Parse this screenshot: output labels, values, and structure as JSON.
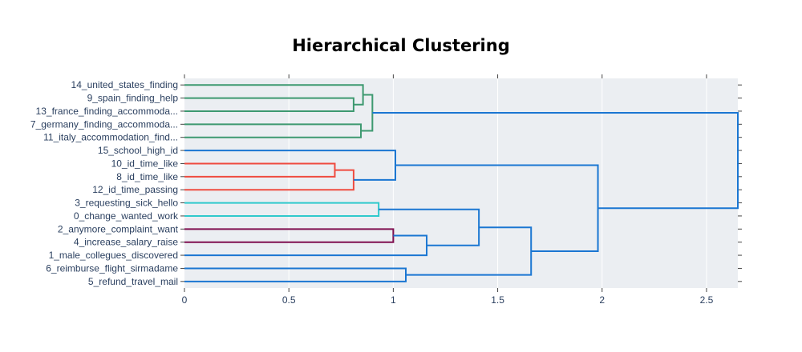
{
  "chart_data": {
    "type": "dendrogram",
    "title": "Hierarchical Clustering",
    "orientation": "horizontal",
    "xlim": [
      0,
      2.65
    ],
    "x_ticks": [
      "0",
      "0.5",
      "1",
      "1.5",
      "2",
      "2.5"
    ],
    "x_tick_values": [
      0,
      0.5,
      1,
      1.5,
      2,
      2.5
    ],
    "grid": true,
    "plot_background": "#ebeef2",
    "leaves": [
      "14_united_states_finding",
      "9_spain_finding_help",
      "13_france_finding_accommoda...",
      "7_germany_finding_accommoda...",
      "11_italy_accommodation_find...",
      "15_school_high_id",
      "10_id_time_like",
      "8_id_time_like",
      "12_id_time_passing",
      "3_requesting_sick_hello",
      "0_change_wanted_work",
      "2_anymore_complaint_want",
      "4_increase_salary_raise",
      "1_male_collegues_discovered",
      "6_reimburse_flight_sirmadame",
      "5_refund_travel_mail"
    ],
    "merges": [
      {
        "a": 1,
        "b": 2,
        "distance": 0.81,
        "color": "#3d9970"
      },
      {
        "a": 0,
        "b": "m0",
        "distance": 0.855,
        "color": "#3d9970"
      },
      {
        "a": 3,
        "b": 4,
        "distance": 0.845,
        "color": "#3d9970"
      },
      {
        "a": "m1",
        "b": "m2",
        "distance": 0.9,
        "color": "#3d9970"
      },
      {
        "a": 6,
        "b": 7,
        "distance": 0.72,
        "color": "#ef4b3f"
      },
      {
        "a": "m4",
        "b": 8,
        "distance": 0.81,
        "color": "#ef4b3f"
      },
      {
        "a": 5,
        "b": "m5",
        "distance": 1.01,
        "color": "#1a76d2"
      },
      {
        "a": 9,
        "b": 10,
        "distance": 0.93,
        "color": "#2ec9cc"
      },
      {
        "a": 11,
        "b": 12,
        "distance": 1.0,
        "color": "#7f0f4f"
      },
      {
        "a": "m8",
        "b": 13,
        "distance": 1.16,
        "color": "#1a76d2"
      },
      {
        "a": "m7",
        "b": "m9",
        "distance": 1.41,
        "color": "#1a76d2"
      },
      {
        "a": 14,
        "b": 15,
        "distance": 1.06,
        "color": "#1a76d2"
      },
      {
        "a": "m10",
        "b": "m11",
        "distance": 1.66,
        "color": "#1a76d2"
      },
      {
        "a": "m6",
        "b": "m12",
        "distance": 1.98,
        "color": "#1a76d2"
      },
      {
        "a": "m3",
        "b": "m13",
        "distance": 2.65,
        "color": "#1a76d2"
      }
    ]
  }
}
